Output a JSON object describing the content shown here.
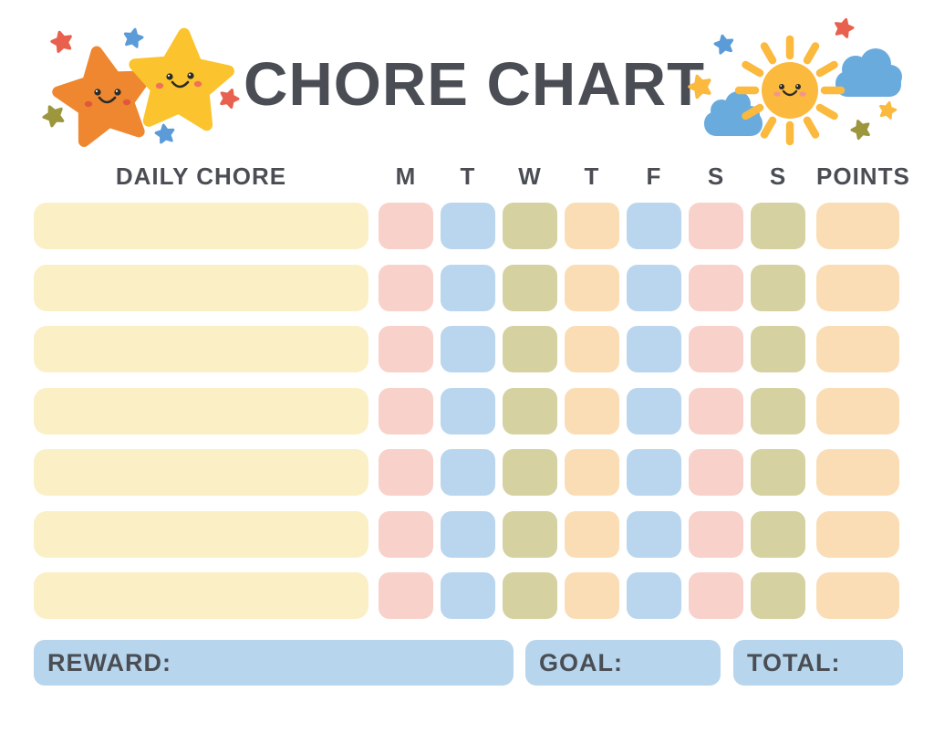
{
  "page": {
    "title": "CHORE CHART"
  },
  "table": {
    "chore_header": "DAILY CHORE",
    "day_headers": [
      "M",
      "T",
      "W",
      "T",
      "F",
      "S",
      "S"
    ],
    "points_header": "POINTS",
    "chore_cell_color": "cream",
    "day_cell_colors": [
      "pink",
      "blue",
      "olive",
      "peach",
      "blue",
      "pink",
      "olive"
    ],
    "points_cell_color": "peach",
    "rows": [
      {
        "chore": "",
        "points": ""
      },
      {
        "chore": "",
        "points": ""
      },
      {
        "chore": "",
        "points": ""
      },
      {
        "chore": "",
        "points": ""
      },
      {
        "chore": "",
        "points": ""
      },
      {
        "chore": "",
        "points": ""
      },
      {
        "chore": "",
        "points": ""
      }
    ]
  },
  "footer": {
    "reward_label": "REWARD:",
    "reward_value": "",
    "goal_label": "GOAL:",
    "goal_value": "",
    "total_label": "TOTAL:",
    "total_value": ""
  },
  "colors": {
    "cream": "#FBEFC6",
    "pink": "#F8D1CA",
    "blue": "#B9D6EE",
    "olive": "#D5D1A0",
    "peach": "#FBDDB5",
    "footer_box": "#B7D5ED",
    "text": "#4A4E54",
    "star_orange": "#EE8730",
    "star_yellow": "#FBC32D",
    "sun_yellow": "#FBB93E",
    "cloud_blue": "#6AABDE",
    "mini_star_red": "#E8614E",
    "mini_star_blue": "#5B9BD8",
    "mini_star_olive": "#9C963D"
  },
  "icons": {
    "stars_illustration": "two-smiling-stars-with-sparkles",
    "sun_illustration": "smiling-sun-with-clouds-and-sparkles"
  }
}
